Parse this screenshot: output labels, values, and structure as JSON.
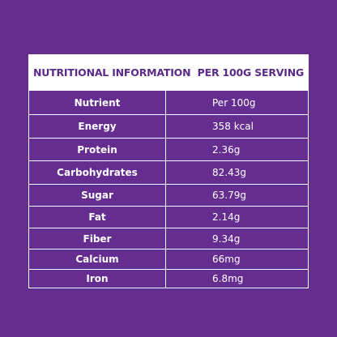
{
  "header": {
    "title": "NUTRITIONAL INFORMATION  PER 100G SERVING"
  },
  "table": {
    "columns": [
      "Nutrient",
      "Per 100g"
    ],
    "rows": [
      [
        "Energy",
        "358 kcal"
      ],
      [
        "Protein",
        "2.36g"
      ],
      [
        "Carbohydrates",
        "82.43g"
      ],
      [
        "Sugar",
        "63.79g"
      ],
      [
        "Fat",
        "2.14g"
      ],
      [
        "Fiber",
        "9.34g"
      ],
      [
        "Calcium",
        "66mg"
      ],
      [
        "Iron",
        "6.8mg"
      ]
    ]
  }
}
